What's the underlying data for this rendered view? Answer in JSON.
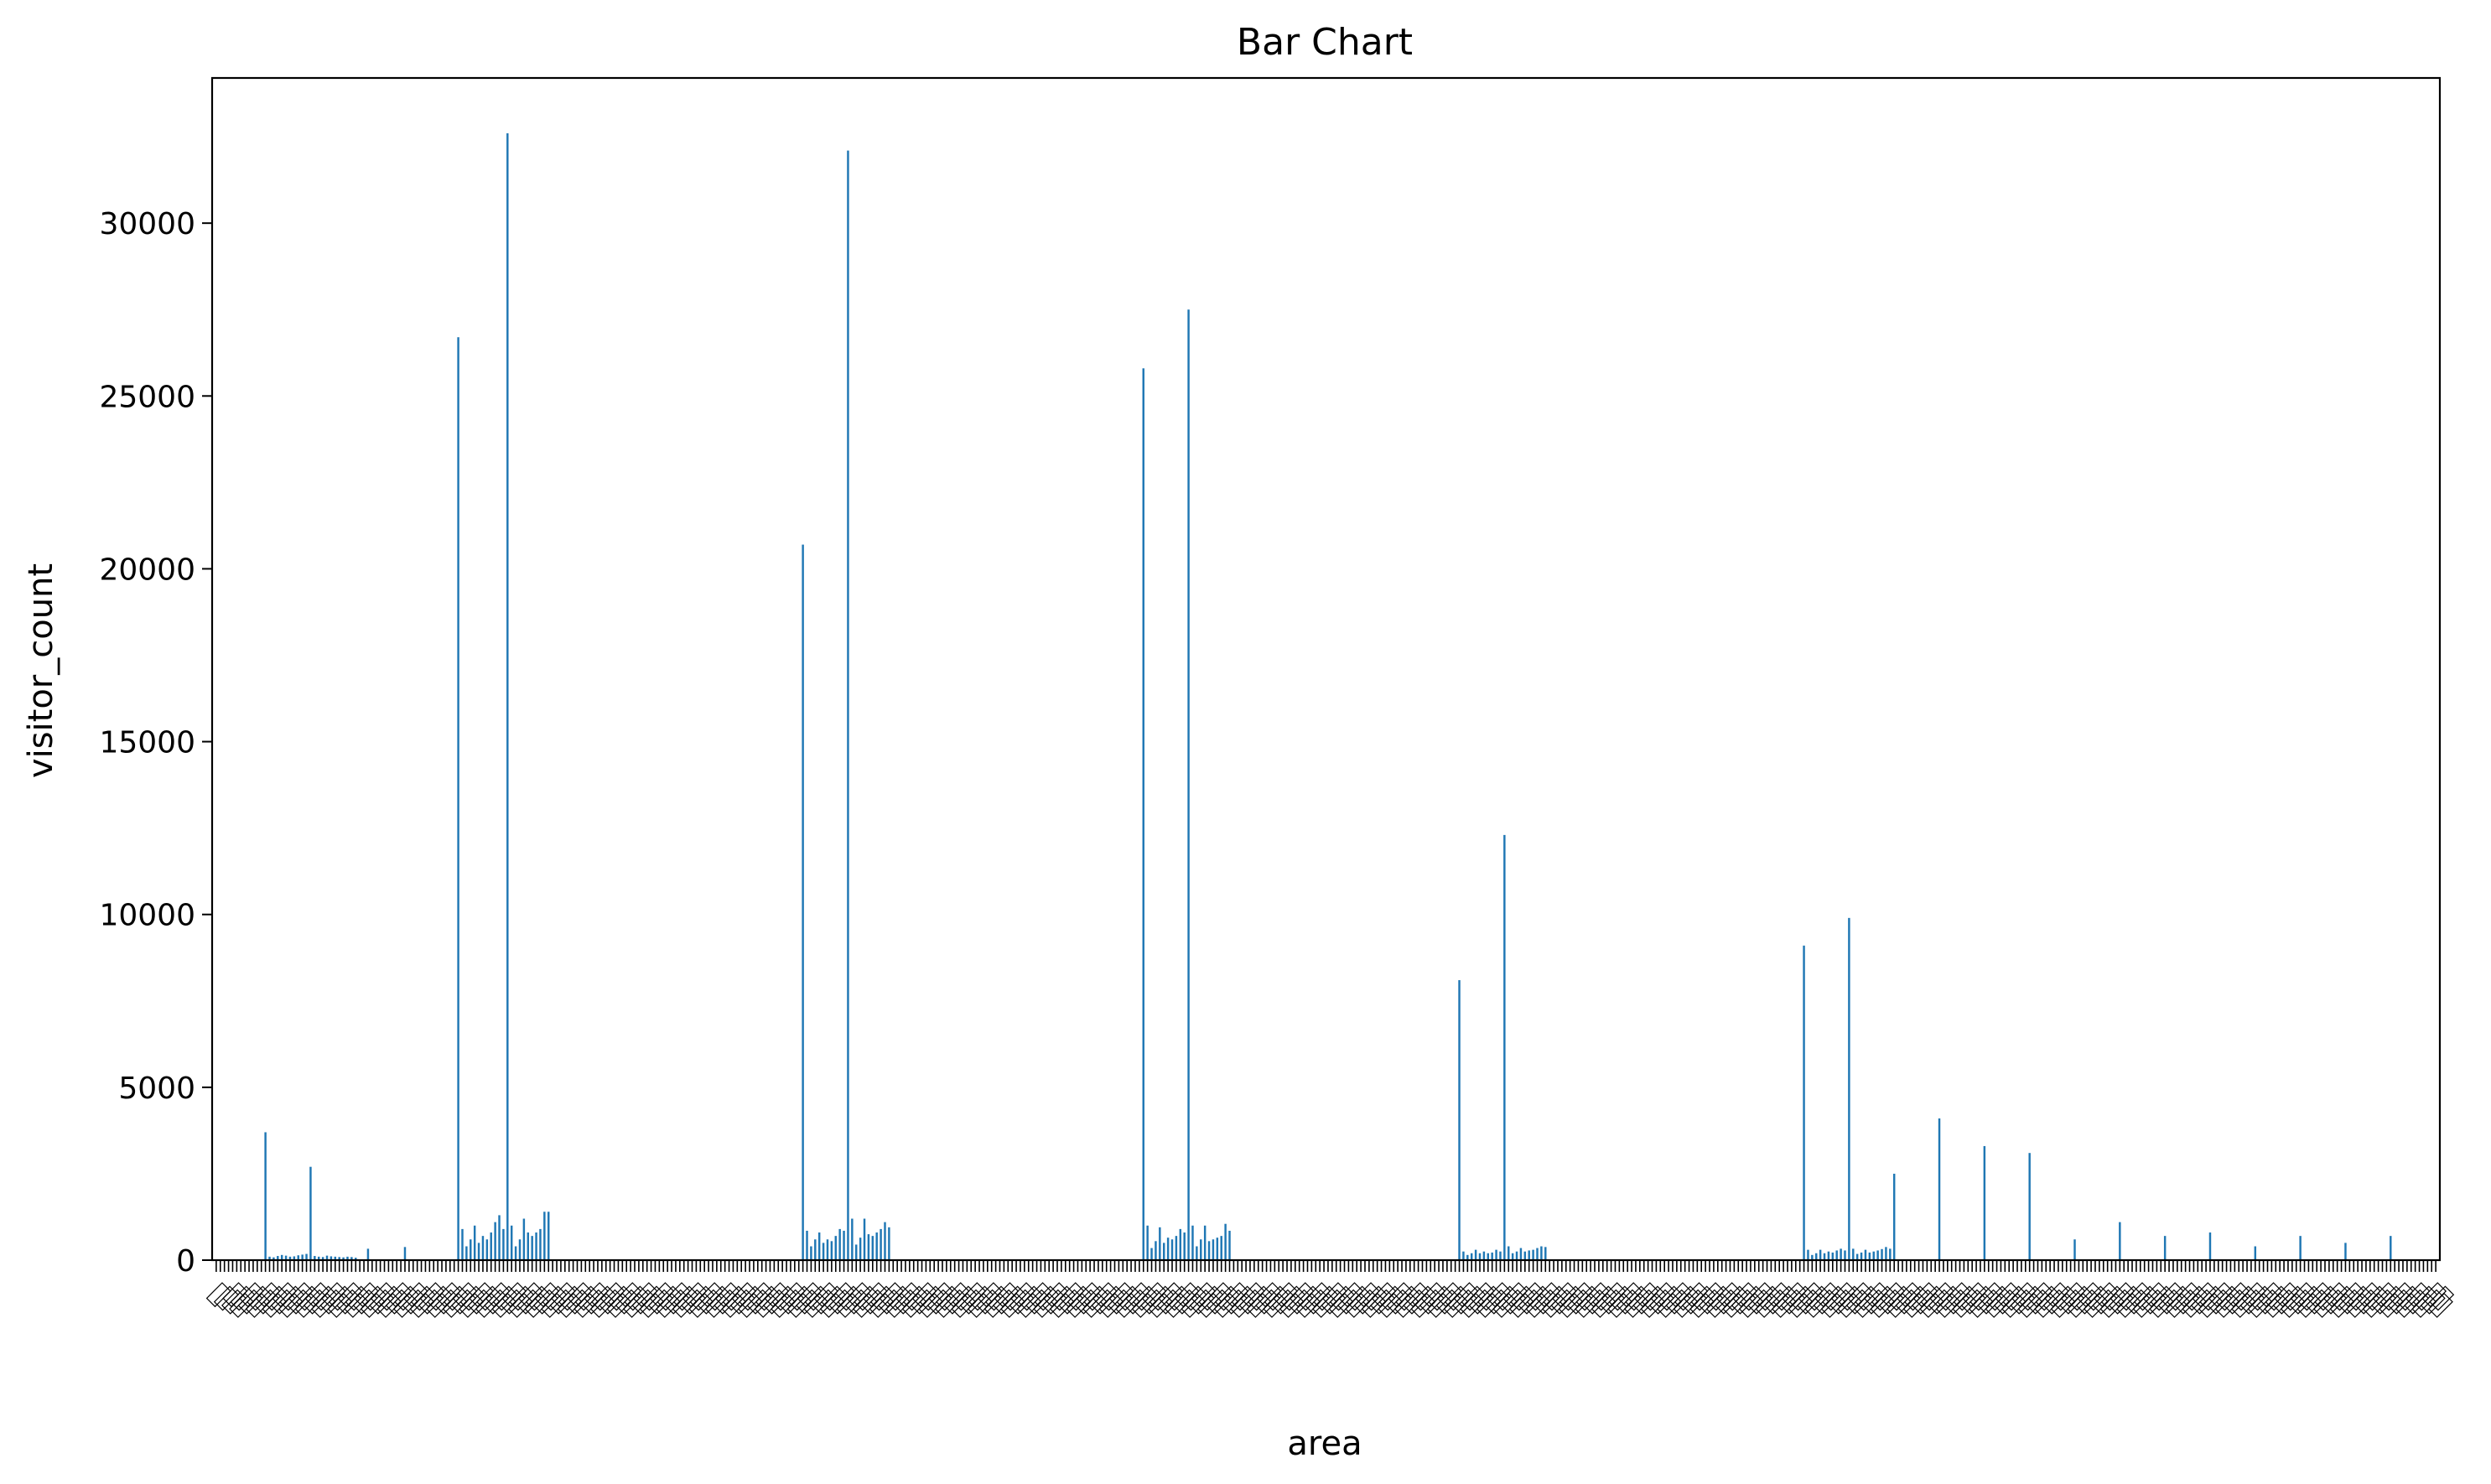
{
  "chart_data": {
    "type": "bar",
    "title": "Bar Chart",
    "xlabel": "area",
    "ylabel": "visitor_count",
    "ylim": [
      0,
      34200
    ],
    "yticks": [
      0,
      5000,
      10000,
      15000,
      20000,
      25000,
      30000
    ],
    "grid": false,
    "legend": "none",
    "bar_color": "#1f77b4",
    "x_tick_labels_note": "category labels are overlapping and unreadable",
    "bar_count": 397,
    "values": [
      0,
      0,
      0,
      0,
      0,
      0,
      0,
      0,
      0,
      0,
      0,
      0,
      3700,
      100,
      80,
      120,
      150,
      130,
      100,
      110,
      140,
      160,
      180,
      2700,
      120,
      100,
      90,
      130,
      110,
      100,
      90,
      80,
      100,
      90,
      70,
      0,
      0,
      330,
      0,
      0,
      0,
      0,
      0,
      0,
      0,
      0,
      380,
      0,
      0,
      0,
      0,
      0,
      0,
      0,
      0,
      0,
      0,
      0,
      0,
      26700,
      900,
      400,
      600,
      1000,
      500,
      700,
      600,
      800,
      1100,
      1300,
      900,
      32600,
      1000,
      400,
      600,
      1200,
      800,
      700,
      800,
      900,
      1400,
      1400,
      0,
      0,
      0,
      0,
      0,
      0,
      0,
      0,
      0,
      0,
      0,
      0,
      0,
      0,
      0,
      0,
      0,
      0,
      0,
      0,
      0,
      0,
      0,
      0,
      0,
      0,
      0,
      0,
      0,
      0,
      0,
      0,
      0,
      0,
      0,
      0,
      0,
      0,
      0,
      0,
      0,
      0,
      0,
      0,
      0,
      0,
      0,
      0,
      0,
      0,
      0,
      0,
      0,
      0,
      0,
      0,
      0,
      0,
      0,
      0,
      0,
      20700,
      850,
      400,
      600,
      800,
      500,
      600,
      550,
      700,
      900,
      850,
      32100,
      1200,
      450,
      650,
      1200,
      750,
      700,
      800,
      900,
      1100,
      950,
      0,
      0,
      0,
      0,
      0,
      0,
      0,
      0,
      0,
      0,
      0,
      0,
      0,
      0,
      0,
      0,
      0,
      0,
      0,
      0,
      0,
      0,
      0,
      0,
      0,
      0,
      0,
      0,
      0,
      0,
      0,
      0,
      0,
      0,
      0,
      0,
      0,
      0,
      0,
      0,
      0,
      0,
      0,
      0,
      0,
      0,
      0,
      0,
      0,
      0,
      0,
      0,
      0,
      0,
      0,
      0,
      0,
      0,
      0,
      0,
      0,
      25800,
      1000,
      350,
      550,
      950,
      500,
      650,
      600,
      700,
      900,
      800,
      27500,
      1000,
      400,
      600,
      1000,
      550,
      600,
      650,
      700,
      1050,
      850,
      0,
      0,
      0,
      0,
      0,
      0,
      0,
      0,
      0,
      0,
      0,
      0,
      0,
      0,
      0,
      0,
      0,
      0,
      0,
      0,
      0,
      0,
      0,
      0,
      0,
      0,
      0,
      0,
      0,
      0,
      0,
      0,
      0,
      0,
      0,
      0,
      0,
      0,
      0,
      0,
      0,
      0,
      0,
      0,
      0,
      0,
      0,
      0,
      0,
      0,
      0,
      0,
      0,
      0,
      0,
      8100,
      250,
      150,
      200,
      300,
      200,
      250,
      200,
      220,
      300,
      250,
      12300,
      400,
      200,
      250,
      350,
      250,
      280,
      300,
      350,
      400,
      380,
      0,
      0,
      0,
      0,
      0,
      0,
      0,
      0,
      0,
      0,
      0,
      0,
      0,
      0,
      0,
      0,
      0,
      0,
      0,
      0,
      0,
      0,
      0,
      0,
      0,
      0,
      0,
      0,
      0,
      0,
      0,
      0,
      0,
      0,
      0,
      0,
      0,
      0,
      0,
      0,
      0,
      0,
      0,
      0,
      0,
      0,
      0,
      0,
      0,
      0,
      0,
      0,
      0,
      0,
      0,
      0,
      0,
      0,
      0,
      0,
      0,
      0,
      9100,
      300,
      150,
      200,
      300,
      200,
      250,
      220,
      280,
      330,
      280,
      9900,
      330,
      180,
      220,
      300,
      220,
      250,
      280,
      320,
      380,
      330,
      2500,
      0,
      0,
      0,
      0,
      0,
      0,
      0,
      0,
      0,
      0,
      4100,
      0,
      0,
      0,
      0,
      0,
      0,
      0,
      0,
      0,
      0,
      3300,
      0,
      0,
      0,
      0,
      0,
      0,
      0,
      0,
      0,
      0,
      3100,
      0,
      0,
      0,
      0,
      0,
      0,
      0,
      0,
      0,
      0,
      600,
      0,
      0,
      0,
      0,
      0,
      0,
      0,
      0,
      0,
      0,
      1100,
      0,
      0,
      0,
      0,
      0,
      0,
      0,
      0,
      0,
      0,
      700,
      0,
      0,
      0,
      0,
      0,
      0,
      0,
      0,
      0,
      0,
      800,
      0,
      0,
      0,
      0,
      0,
      0,
      0,
      0,
      0,
      0,
      400,
      0,
      0,
      0,
      0,
      0,
      0,
      0,
      0,
      0,
      0,
      700,
      0,
      0,
      0,
      0,
      0,
      0,
      0,
      0,
      0,
      0,
      500,
      0,
      0,
      0,
      0,
      0,
      0,
      0,
      0,
      0,
      0,
      700,
      0,
      0,
      0,
      0,
      0,
      0,
      0,
      0,
      0,
      0,
      0
    ]
  }
}
